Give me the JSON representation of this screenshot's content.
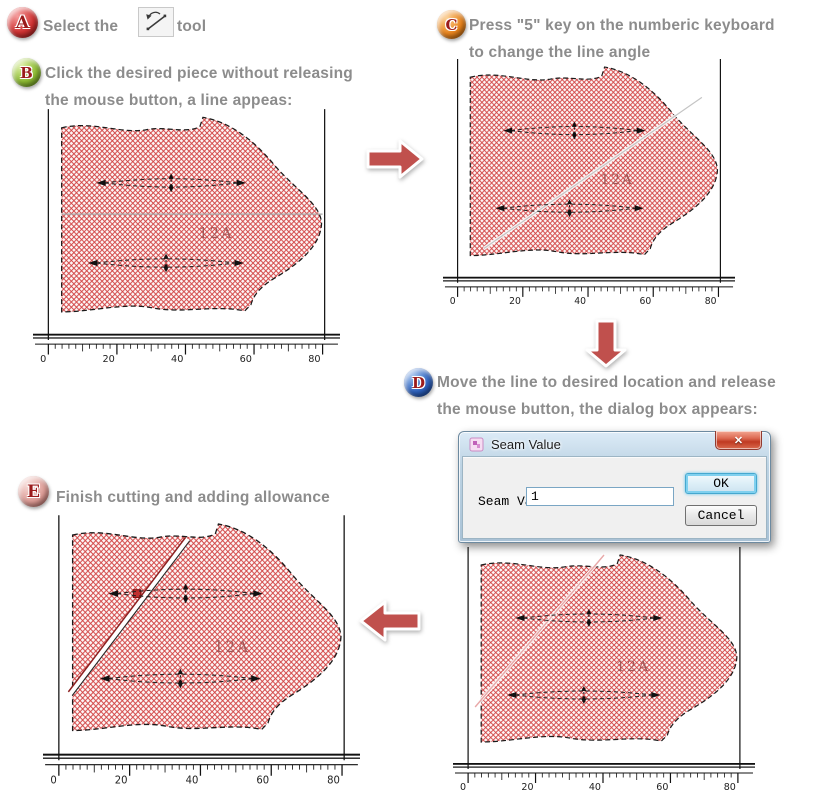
{
  "steps": {
    "a": {
      "letter": "A",
      "text_before": "Select the",
      "text_after": "tool"
    },
    "b": {
      "letter": "B",
      "line1": "Click the desired piece without releasing",
      "line2": "the mouse button, a line appeas:"
    },
    "c": {
      "letter": "C",
      "line1": "Press \"5\" key on the numberic keyboard",
      "line2": "to change the line angle"
    },
    "d": {
      "letter": "D",
      "line1": "Move the line to desired location and release",
      "line2": "the mouse button, the dialog box appears:"
    },
    "e": {
      "letter": "E",
      "line1": "Finish cutting and adding allowance"
    }
  },
  "dialog": {
    "title": "Seam Value",
    "label": "Seam Value:",
    "value": "1",
    "ok_label": "OK",
    "cancel_label": "Cancel",
    "close_symbol": "✕"
  },
  "pattern": {
    "piece_label": "12A",
    "ruler_numbers": [
      "0",
      "20",
      "40",
      "60",
      "80"
    ]
  },
  "icons": {
    "tool": "rotate-line-tool-icon",
    "dialog_titlebar": "pattern-app-icon",
    "flow": [
      "right-arrow-icon",
      "down-arrow-icon",
      "left-arrow-icon"
    ]
  },
  "colors": {
    "step_text": "#8c8c8c",
    "flow_arrow": "#c0504d",
    "hatch": "#d24444",
    "piece_label": "#a15959",
    "badge_a": "#cf3232",
    "badge_b": "#8cba32",
    "badge_c": "#e8831c",
    "badge_d": "#2e62be",
    "badge_e": "#dc9c96",
    "ok_button_glow": "#63c3e8",
    "close_button": "#c03a22"
  }
}
